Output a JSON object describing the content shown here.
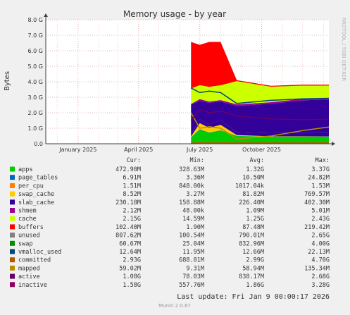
{
  "colors": {
    "background": "#f0f0f0",
    "plot_bg": "#ffffff",
    "grid_major": "#e0b8b8",
    "grid_minor": "#f0d0d0",
    "axis": "#404040",
    "text": "#333333"
  },
  "chart_data": {
    "type": "area",
    "title": "Memory usage - by year",
    "ylabel": "Bytes",
    "side_label": "RRDTOOL / TOBI OETIKER",
    "footer": "Munin 2.0.67",
    "ylim": [
      0,
      8
    ],
    "y_unit": "GiB",
    "yticks": [
      {
        "value": 0,
        "label": "0.0"
      },
      {
        "value": 1,
        "label": "1.0 G"
      },
      {
        "value": 2,
        "label": "2.0 G"
      },
      {
        "value": 3,
        "label": "3.0 G"
      },
      {
        "value": 4,
        "label": "4.0 G"
      },
      {
        "value": 5,
        "label": "5.0 G"
      },
      {
        "value": 6,
        "label": "6.0 G"
      },
      {
        "value": 7,
        "label": "7.0 G"
      },
      {
        "value": 8,
        "label": "8.0 G"
      }
    ],
    "xlim": [
      "2024-11-14",
      "2026-01-09"
    ],
    "xticks": [
      {
        "date": "2025-01-01",
        "label": "January 2025"
      },
      {
        "date": "2025-04-01",
        "label": "April 2025"
      },
      {
        "date": "2025-07-01",
        "label": "July 2025"
      },
      {
        "date": "2025-10-01",
        "label": "October 2025"
      }
    ],
    "grid": true,
    "stacked_series": [
      {
        "name": "apps",
        "color": "#00cc00",
        "values": [
          0.4,
          0.9,
          0.7,
          0.85,
          0.5,
          0.45,
          0.45,
          0.46
        ]
      },
      {
        "name": "page_tables",
        "color": "#0066b3",
        "values": [
          0.02,
          0.03,
          0.02,
          0.02,
          0.01,
          0.01,
          0.01,
          0.01
        ]
      },
      {
        "name": "per_cpu",
        "color": "#ff8000",
        "values": [
          0.0,
          0.0,
          0.0,
          0.0,
          0.0,
          0.0,
          0.0,
          0.0
        ]
      },
      {
        "name": "swap_cache",
        "color": "#ffcc00",
        "values": [
          0.05,
          0.4,
          0.3,
          0.35,
          0.05,
          0.02,
          0.02,
          0.01
        ]
      },
      {
        "name": "slab_cache",
        "color": "#330099",
        "values": [
          0.15,
          0.25,
          0.22,
          0.3,
          0.18,
          0.2,
          0.22,
          0.22
        ]
      },
      {
        "name": "shmem",
        "color": "#990099",
        "values": [
          0.0,
          0.0,
          0.0,
          0.0,
          0.0,
          0.0,
          0.0,
          0.0
        ]
      },
      {
        "name": "cache",
        "color": "#330099",
        "values": [
          1.9,
          1.2,
          1.4,
          1.2,
          1.7,
          1.9,
          2.1,
          2.15
        ]
      },
      {
        "name": "buffers",
        "color": "#990099",
        "values": [
          0.05,
          0.1,
          0.08,
          0.1,
          0.1,
          0.1,
          0.1,
          0.1
        ]
      },
      {
        "name": "unused",
        "color": "#ccff00",
        "values": [
          1.0,
          0.9,
          0.95,
          0.95,
          1.5,
          1.0,
          0.85,
          0.8
        ]
      },
      {
        "name": "swap",
        "color": "#ff0000",
        "values": [
          3.0,
          2.6,
          2.9,
          2.8,
          0.06,
          0.06,
          0.06,
          0.06
        ]
      }
    ],
    "stacked_x": [
      "2025-06-18",
      "2025-07-01",
      "2025-07-15",
      "2025-08-01",
      "2025-08-25",
      "2025-10-15",
      "2025-12-01",
      "2026-01-09"
    ],
    "line_series": [
      {
        "name": "vmalloc_used",
        "color": "#808080",
        "values": [
          0.01,
          0.01,
          0.01,
          0.01,
          0.01,
          0.01,
          0.01,
          0.01
        ]
      },
      {
        "name": "committed",
        "color": "#00487d",
        "values": [
          3.6,
          3.3,
          3.4,
          3.3,
          2.6,
          2.8,
          2.9,
          2.93
        ]
      },
      {
        "name": "mapped",
        "color": "#b35a00",
        "values": [
          0.05,
          0.06,
          0.06,
          0.06,
          0.06,
          0.06,
          0.06,
          0.06
        ]
      },
      {
        "name": "active",
        "color": "#b38f00",
        "values": [
          2.0,
          1.0,
          1.1,
          1.0,
          0.3,
          0.5,
          0.85,
          1.08
        ]
      },
      {
        "name": "inactive",
        "color": "#6b006b",
        "values": [
          1.5,
          2.2,
          2.0,
          2.1,
          1.8,
          1.6,
          1.55,
          1.58
        ]
      }
    ],
    "legend_headers": [
      "Cur:",
      "Min:",
      "Avg:",
      "Max:"
    ],
    "legend": [
      {
        "name": "apps",
        "color": "#00cc00",
        "cur": "472.90M",
        "min": "328.63M",
        "avg": "1.32G",
        "max": "3.37G"
      },
      {
        "name": "page_tables",
        "color": "#0066b3",
        "cur": "6.91M",
        "min": "3.36M",
        "avg": "10.50M",
        "max": "24.82M"
      },
      {
        "name": "per_cpu",
        "color": "#ff8000",
        "cur": "1.51M",
        "min": "848.00k",
        "avg": "1017.04k",
        "max": "1.53M"
      },
      {
        "name": "swap_cache",
        "color": "#ffcc00",
        "cur": "8.52M",
        "min": "3.27M",
        "avg": "81.82M",
        "max": "769.57M"
      },
      {
        "name": "slab_cache",
        "color": "#330099",
        "cur": "230.18M",
        "min": "158.88M",
        "avg": "226.40M",
        "max": "402.30M"
      },
      {
        "name": "shmem",
        "color": "#990099",
        "cur": "2.12M",
        "min": "48.00k",
        "avg": "1.09M",
        "max": "5.01M"
      },
      {
        "name": "cache",
        "color": "#ccff00",
        "cur": "2.15G",
        "min": "14.59M",
        "avg": "1.25G",
        "max": "2.43G"
      },
      {
        "name": "buffers",
        "color": "#ff0000",
        "cur": "102.40M",
        "min": "1.90M",
        "avg": "87.48M",
        "max": "219.42M"
      },
      {
        "name": "unused",
        "color": "#808080",
        "cur": "807.62M",
        "min": "100.54M",
        "avg": "790.01M",
        "max": "2.65G"
      },
      {
        "name": "swap",
        "color": "#008f00",
        "cur": "60.67M",
        "min": "25.04M",
        "avg": "832.96M",
        "max": "4.00G"
      },
      {
        "name": "vmalloc_used",
        "color": "#00487d",
        "cur": "12.64M",
        "min": "11.95M",
        "avg": "12.66M",
        "max": "22.13M"
      },
      {
        "name": "committed",
        "color": "#b35a00",
        "cur": "2.93G",
        "min": "688.81M",
        "avg": "2.99G",
        "max": "4.70G"
      },
      {
        "name": "mapped",
        "color": "#b38f00",
        "cur": "59.02M",
        "min": "9.31M",
        "avg": "58.94M",
        "max": "135.34M"
      },
      {
        "name": "active",
        "color": "#6b006b",
        "cur": "1.08G",
        "min": "78.03M",
        "avg": "838.17M",
        "max": "2.68G"
      },
      {
        "name": "inactive",
        "color": "#8f005d",
        "cur": "1.58G",
        "min": "557.76M",
        "avg": "1.86G",
        "max": "3.28G"
      }
    ],
    "last_update": "Last update: Fri Jan  9 00:00:17 2026"
  }
}
